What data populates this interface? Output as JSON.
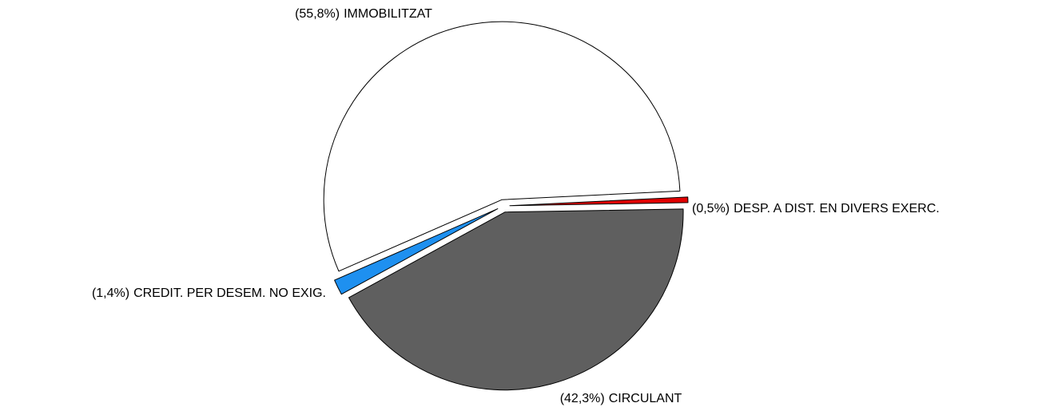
{
  "chart_data": {
    "type": "pie",
    "categories": [
      "CIRCULANT",
      "CREDIT. PER DESEM. NO EXIG.",
      "IMMOBILITZAT",
      "DESP. A DIST. EN DIVERS EXERC."
    ],
    "values": [
      42.3,
      1.4,
      55.8,
      0.5
    ],
    "value_labels": [
      "(42,3%)",
      "(1,4%)",
      "(55,8%)",
      "(0,5%)"
    ],
    "colors": [
      "#5f5f5f",
      "#1e90f0",
      "#ffffff",
      "#e00000"
    ]
  }
}
